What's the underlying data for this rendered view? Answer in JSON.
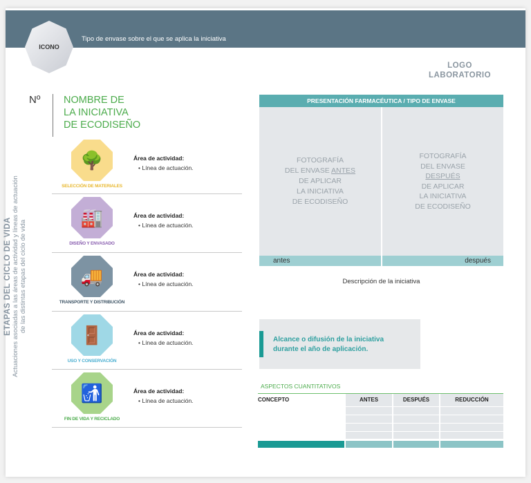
{
  "header": {
    "icon_label": "ICONO",
    "text": "Tipo de envase sobre el que se aplica la iniciativa",
    "color": "#5b7585"
  },
  "logo": {
    "line1": "LOGO",
    "line2": "LABORATORIO"
  },
  "initiative": {
    "number": "Nº",
    "title": [
      "NOMBRE DE",
      "LA INICIATIVA",
      "DE ECODISEÑO"
    ]
  },
  "sidebar": {
    "title": "ETAPAS DEL CICLO DE VIDA",
    "subtitle1": "Actuaciones asociadas a las áreas de actividad y líneas de actuación",
    "subtitle2": "de las distintas etapas del ciclo de vida"
  },
  "stages": [
    {
      "label": "SELECCIÓN DE MATERIALES",
      "color": "#f9dc8c",
      "label_color": "#e8b830",
      "icon": "trees-logs-icon",
      "glyph": "🌳",
      "area": "Área de actividad:",
      "line": "Línea de actuación."
    },
    {
      "label": "DISEÑO Y ENVASADO",
      "color": "#c3aed6",
      "label_color": "#8a5fb0",
      "icon": "packaging-line-icon",
      "glyph": "🏭",
      "area": "Área de actividad:",
      "line": "Línea de actuación."
    },
    {
      "label": "TRANSPORTE Y DISTRIBUCIÓN",
      "color": "#7d93a3",
      "label_color": "#3f5566",
      "icon": "truck-icon",
      "glyph": "🚚",
      "area": "Área de actividad:",
      "line": "Línea de actuación."
    },
    {
      "label": "USO Y CONSERVACIÓN",
      "color": "#9fd8e6",
      "label_color": "#4aaed0",
      "icon": "medicine-cabinet-icon",
      "glyph": "🚪",
      "area": "Área de actividad:",
      "line": "Línea de actuación."
    },
    {
      "label": "FIN DE VIDA Y RECICLADO",
      "color": "#a8d48a",
      "label_color": "#4bab4b",
      "icon": "recycling-person-icon",
      "glyph": "🚮",
      "area": "Área de actividad:",
      "line": "Línea de actuación."
    }
  ],
  "presentation": {
    "title": "PRESENTACIÓN FARMACÉUTICA / TIPO DE ENVASE",
    "before": {
      "l1": "FOTOGRAFÍA",
      "l2a": "DEL ENVASE ",
      "l2b": "ANTES",
      "l3": "DE APLICAR",
      "l4": "LA INICIATIVA",
      "l5": "DE ECODISEÑO"
    },
    "after": {
      "l1": "FOTOGRAFÍA",
      "l2": "DEL ENVASE",
      "l3": "DESPUÉS",
      "l4": "DE APLICAR",
      "l5": "LA INICIATIVA",
      "l6": "DE ECODISEÑO"
    },
    "before_label": "antes",
    "after_label": "después",
    "description": "Descripción de la iniciativa"
  },
  "reach": {
    "line1": "Alcance o difusión de la iniciativa",
    "line2": "durante el año de aplicación."
  },
  "quantitative": {
    "title": "ASPECTOS CUANTITATIVOS",
    "columns": [
      "CONCEPTO",
      "ANTES",
      "DESPUÉS",
      "REDUCCIÓN"
    ]
  }
}
